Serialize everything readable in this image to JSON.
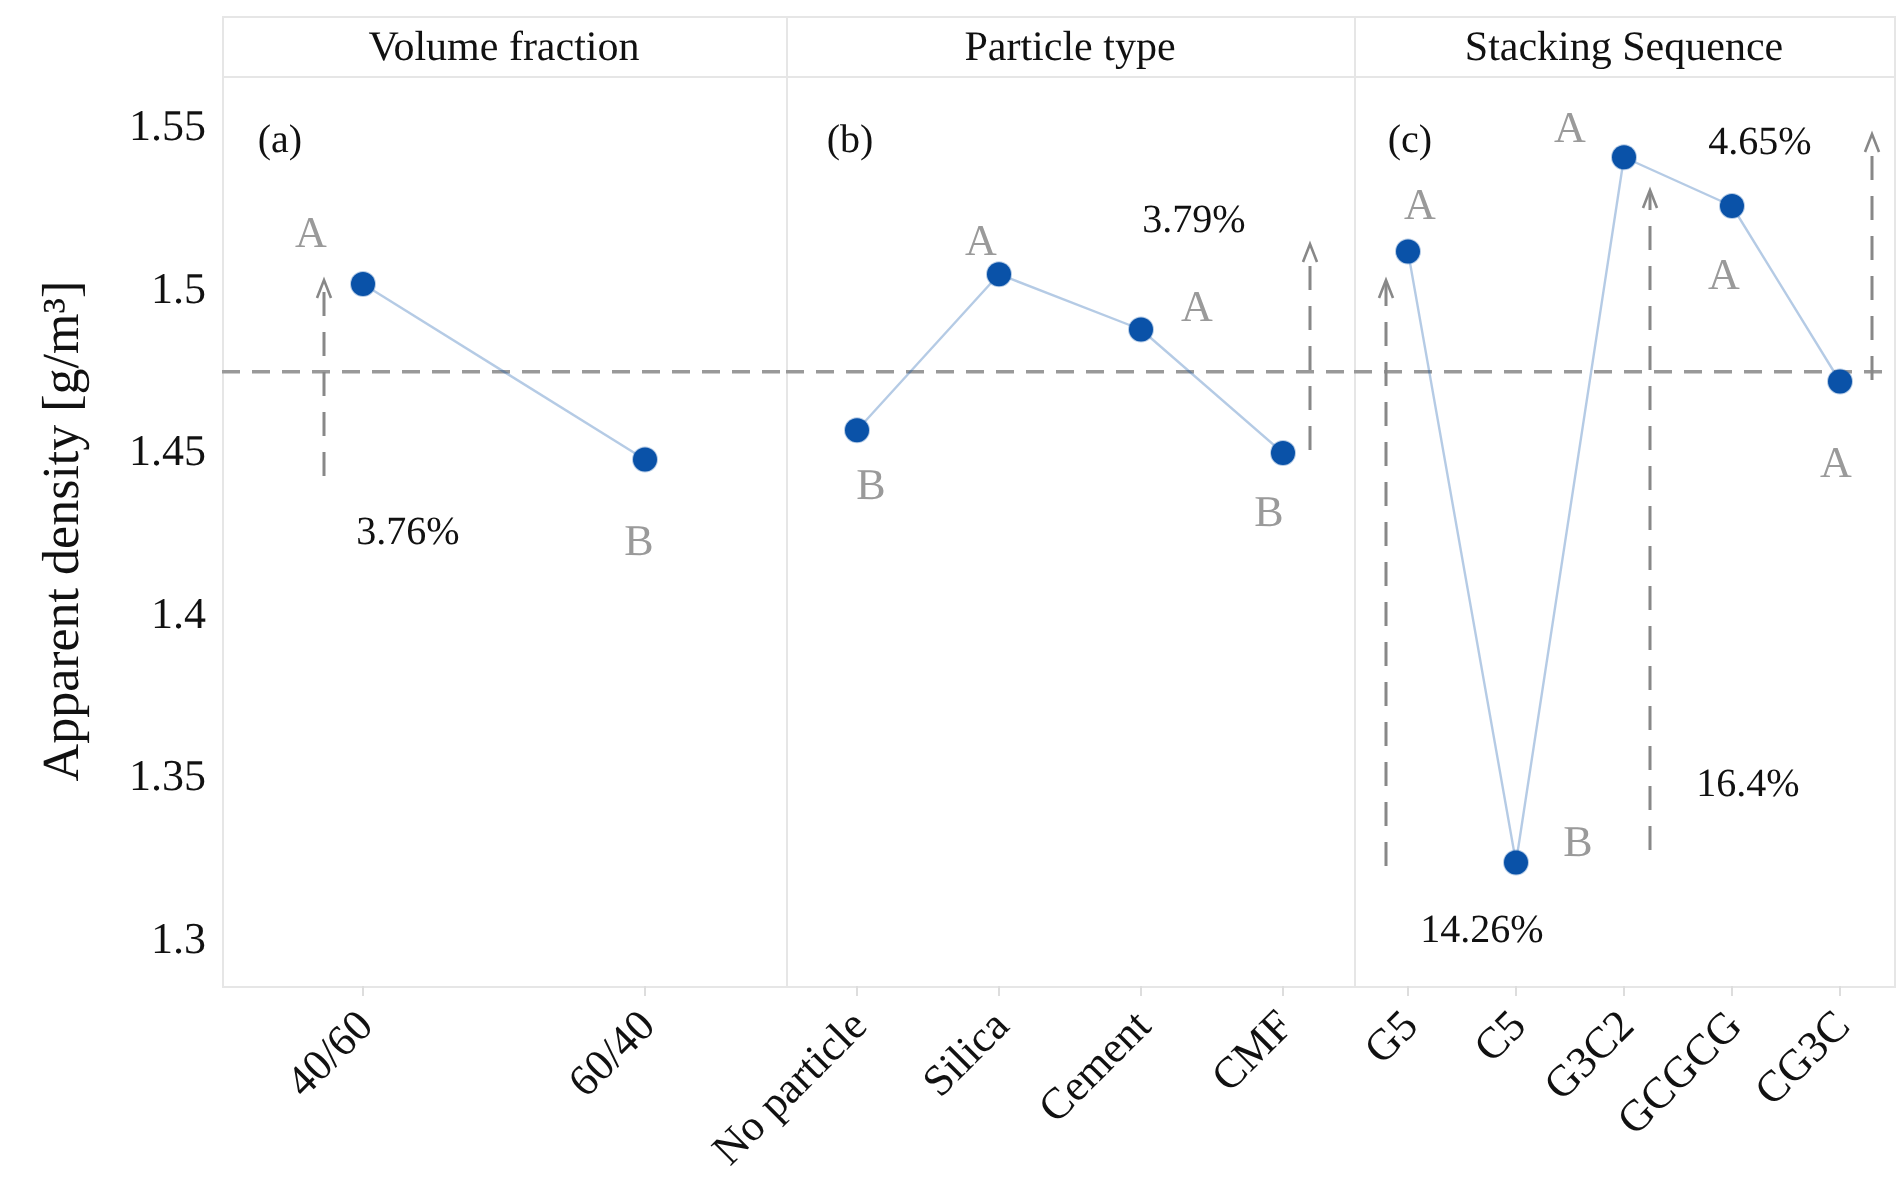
{
  "chart_data": [
    {
      "type": "line",
      "title": "Volume fraction",
      "ylabel": "Apparent density [g/m³]",
      "categories": [
        "40/60",
        "60/40"
      ],
      "values": [
        1.501,
        1.447
      ],
      "color": "#0a52a8",
      "marker": "circle",
      "ylim": [
        1.285,
        1.565
      ],
      "yticks": [
        1.3,
        1.35,
        1.4,
        1.45,
        1.5,
        1.55
      ],
      "ref_lines": [
        {
          "axis": "y",
          "value": 1.474,
          "color": "#999999",
          "line_style": "dashed"
        }
      ],
      "annotations": [
        "(a)",
        {
          "text": "A",
          "x": "40/60",
          "y": 1.501
        },
        {
          "text": "B",
          "x": "60/40",
          "y": 1.447
        },
        "3.76%"
      ]
    },
    {
      "type": "line",
      "title": "Particle type",
      "categories": [
        "No particle",
        "Silica",
        "Cement",
        "CMF"
      ],
      "values": [
        1.456,
        1.504,
        1.487,
        1.449
      ],
      "color": "#0a52a8",
      "marker": "circle",
      "ylim": [
        1.285,
        1.565
      ],
      "yticks": [
        1.3,
        1.35,
        1.4,
        1.45,
        1.5,
        1.55
      ],
      "tick_labels": "x",
      "ref_lines": [
        {
          "axis": "y",
          "value": 1.474,
          "color": "#999999",
          "line_style": "dashed"
        }
      ],
      "annotations": [
        "(b)",
        {
          "text": "B",
          "x": "No particle",
          "y": 1.456
        },
        {
          "text": "A",
          "x": "Silica",
          "y": 1.504
        },
        {
          "text": "A",
          "x": "Cement",
          "y": 1.487
        },
        {
          "text": "B",
          "x": "CMF",
          "y": 1.449
        },
        "3.79%"
      ]
    },
    {
      "type": "line",
      "title": "Stacking Sequence",
      "categories": [
        "G5",
        "C5",
        "G3C2",
        "GCGCG",
        "CG3C"
      ],
      "values": [
        1.511,
        1.323,
        1.54,
        1.525,
        1.471
      ],
      "color": "#0a52a8",
      "marker": "circle",
      "ylim": [
        1.285,
        1.565
      ],
      "yticks": [
        1.3,
        1.35,
        1.4,
        1.45,
        1.5,
        1.55
      ],
      "tick_labels": "x",
      "ref_lines": [
        {
          "axis": "y",
          "value": 1.474,
          "color": "#999999",
          "line_style": "dashed"
        }
      ],
      "annotations": [
        "(c)",
        {
          "text": "A",
          "x": "G5",
          "y": 1.511
        },
        {
          "text": "B",
          "x": "C5",
          "y": 1.323
        },
        {
          "text": "A",
          "x": "G3C2",
          "y": 1.54
        },
        {
          "text": "A",
          "x": "GCGCG",
          "y": 1.525
        },
        {
          "text": "A",
          "x": "CG3C",
          "y": 1.471
        },
        "4.65%",
        "16.4%",
        "14.26%"
      ]
    }
  ]
}
